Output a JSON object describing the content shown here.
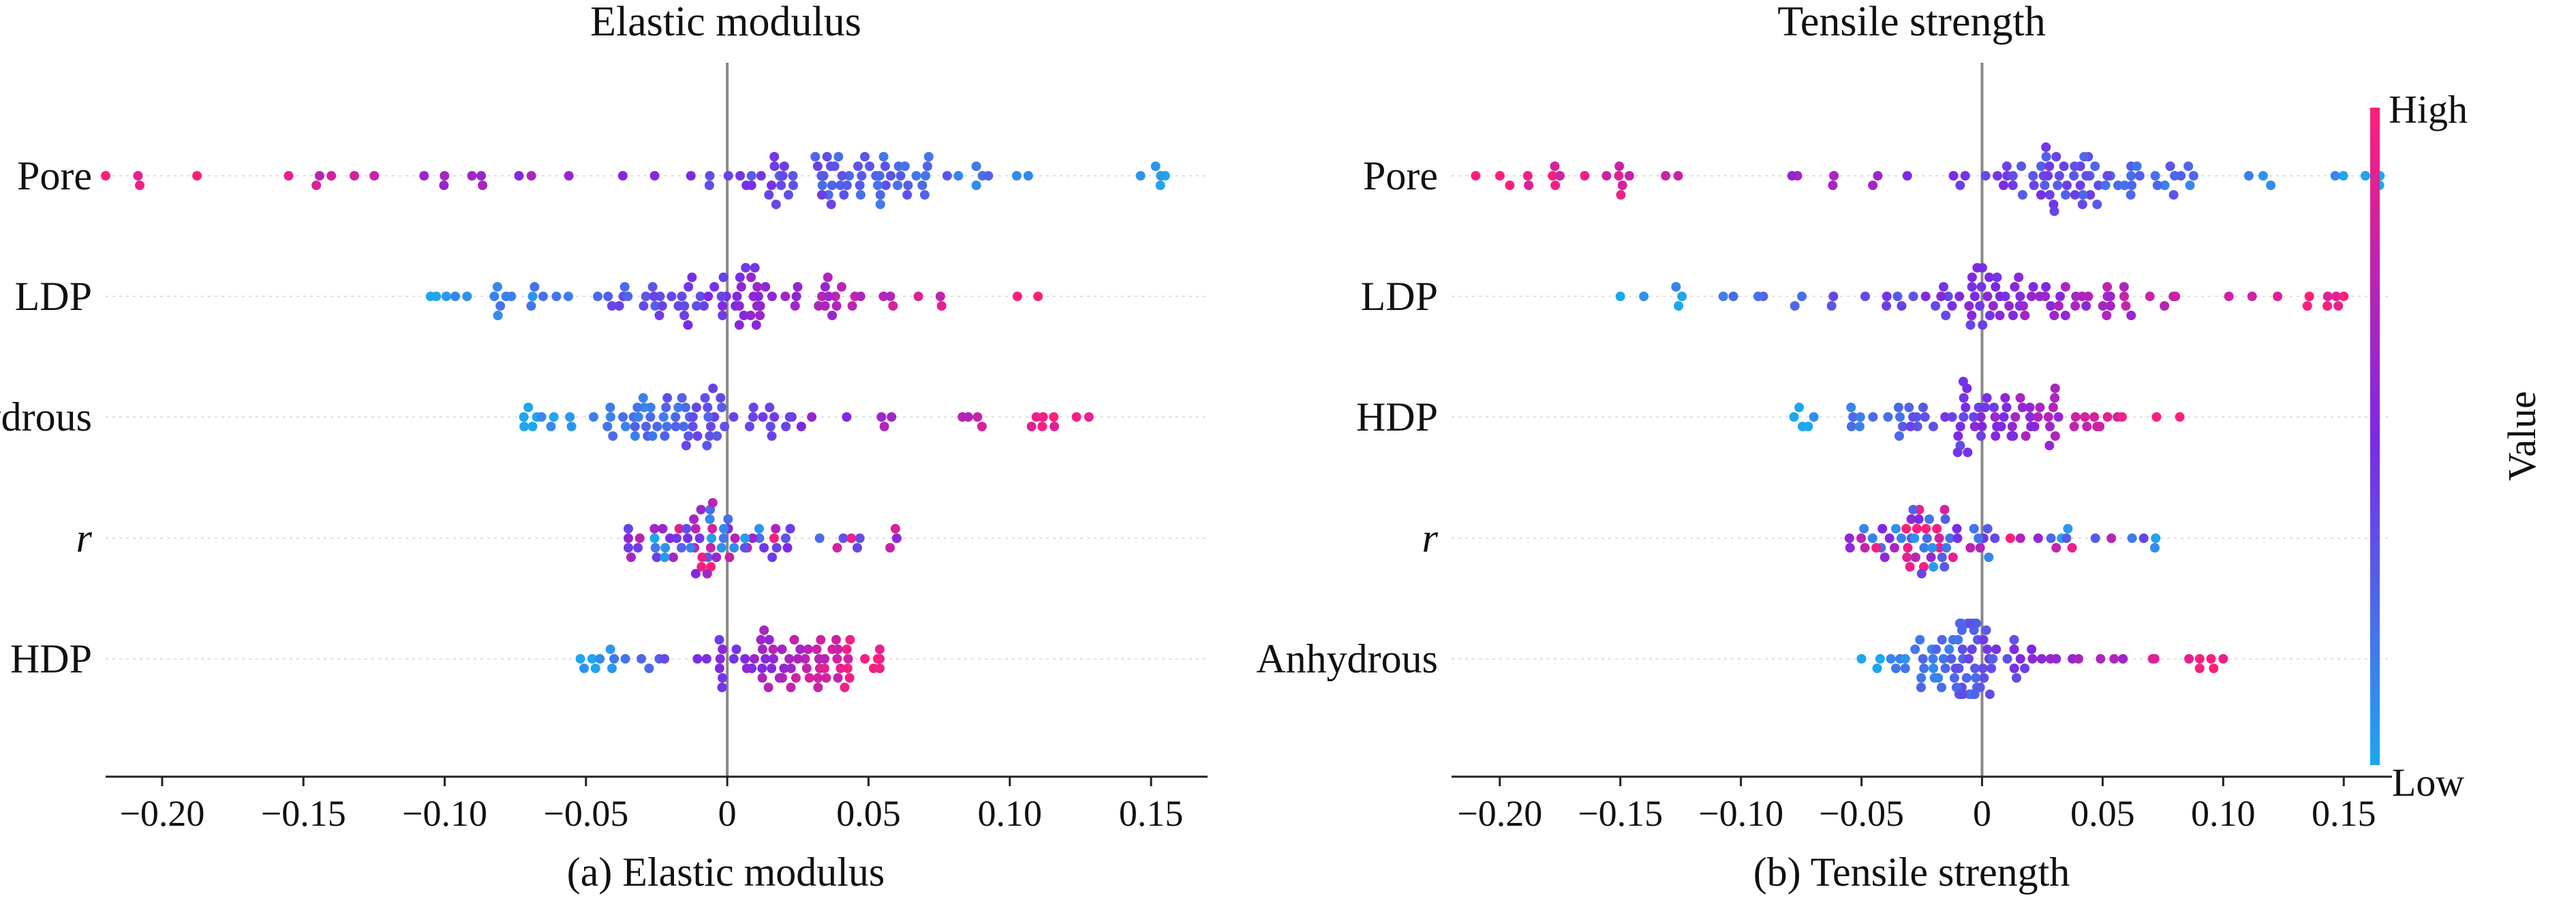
{
  "chart_data": [
    {
      "type": "scatter",
      "subtype": "shap-beeswarm",
      "title": "Elastic modulus",
      "caption": "(a) Elastic modulus",
      "xlim": [
        -0.22,
        0.17
      ],
      "xticks": [
        {
          "value": -0.2,
          "label": "−0.20"
        },
        {
          "value": -0.15,
          "label": "−0.15"
        },
        {
          "value": -0.1,
          "label": "−0.10"
        },
        {
          "value": -0.05,
          "label": "−0.05"
        },
        {
          "value": 0,
          "label": "0"
        },
        {
          "value": 0.05,
          "label": "0.05"
        },
        {
          "value": 0.1,
          "label": "0.10"
        },
        {
          "value": 0.15,
          "label": "0.15"
        }
      ],
      "features": [
        {
          "name": "Pore",
          "italic": false,
          "min": -0.22,
          "max": 0.155,
          "cluster": 0.04,
          "spread": 0.03,
          "n": 100,
          "mode": "pos_low"
        },
        {
          "name": "LDP",
          "italic": false,
          "min": -0.105,
          "max": 0.11,
          "cluster": 0.0,
          "spread": 0.03,
          "n": 95,
          "mode": "pos_high"
        },
        {
          "name": "Anhydrous",
          "italic": false,
          "min": -0.072,
          "max": 0.128,
          "cluster": -0.02,
          "spread": 0.025,
          "n": 90,
          "mode": "pos_high"
        },
        {
          "name": "r",
          "italic": true,
          "min": -0.035,
          "max": 0.06,
          "cluster": -0.01,
          "spread": 0.02,
          "n": 70,
          "mode": "mixed"
        },
        {
          "name": "HDP",
          "italic": false,
          "min": -0.052,
          "max": 0.054,
          "cluster": 0.02,
          "spread": 0.02,
          "n": 80,
          "mode": "pos_high"
        }
      ]
    },
    {
      "type": "scatter",
      "subtype": "shap-beeswarm",
      "title": "Tensile strength",
      "caption": "(b) Tensile strength",
      "xlim": [
        -0.22,
        0.17
      ],
      "xticks": [
        {
          "value": -0.2,
          "label": "−0.20"
        },
        {
          "value": -0.15,
          "label": "−0.15"
        },
        {
          "value": -0.1,
          "label": "−0.10"
        },
        {
          "value": -0.05,
          "label": "−0.05"
        },
        {
          "value": 0,
          "label": "0"
        },
        {
          "value": 0.05,
          "label": "0.05"
        },
        {
          "value": 0.1,
          "label": "0.10"
        },
        {
          "value": 0.15,
          "label": "0.15"
        }
      ],
      "features": [
        {
          "name": "Pore",
          "italic": false,
          "min": -0.21,
          "max": 0.165,
          "cluster": 0.04,
          "spread": 0.03,
          "n": 100,
          "mode": "pos_low"
        },
        {
          "name": "LDP",
          "italic": false,
          "min": -0.15,
          "max": 0.15,
          "cluster": 0.0,
          "spread": 0.03,
          "n": 95,
          "mode": "pos_high"
        },
        {
          "name": "HDP",
          "italic": false,
          "min": -0.078,
          "max": 0.082,
          "cluster": 0.0,
          "spread": 0.03,
          "n": 85,
          "mode": "pos_high"
        },
        {
          "name": "r",
          "italic": true,
          "min": -0.055,
          "max": 0.072,
          "cluster": -0.022,
          "spread": 0.015,
          "n": 70,
          "mode": "mixed"
        },
        {
          "name": "Anhydrous",
          "italic": false,
          "min": -0.05,
          "max": 0.1,
          "cluster": -0.01,
          "spread": 0.012,
          "n": 95,
          "mode": "pos_high"
        }
      ]
    }
  ],
  "colorbar": {
    "label": "Value",
    "high_label": "High",
    "low_label": "Low",
    "high_color": "#ff1f7a",
    "mid_color": "#7d28e6",
    "low_color": "#1ea6ee"
  },
  "colors": {
    "zero_line": "#888888",
    "axis": "#222222",
    "guide_line": "#e0e0e0"
  }
}
